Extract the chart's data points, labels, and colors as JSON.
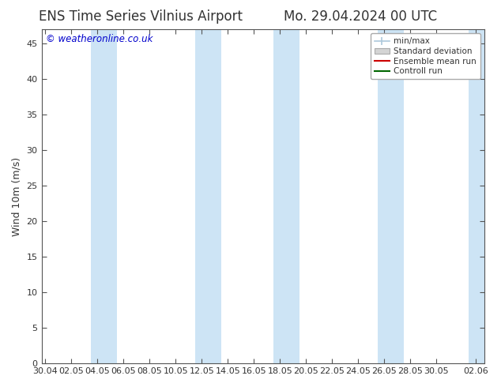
{
  "title_left": "ENS Time Series Vilnius Airport",
  "title_right": "Mo. 29.04.2024 00 UTC",
  "ylabel": "Wind 10m (m/s)",
  "watermark": "© weatheronline.co.uk",
  "watermark_color": "#0000cc",
  "bg_color": "#ffffff",
  "plot_bg_color": "#ffffff",
  "shaded_band_color": "#cde4f5",
  "x_ticks_labels": [
    "30.04",
    "02.05",
    "04.05",
    "06.05",
    "08.05",
    "10.05",
    "12.05",
    "14.05",
    "16.05",
    "18.05",
    "20.05",
    "22.05",
    "24.05",
    "26.05",
    "28.05",
    "30.05",
    "02.06"
  ],
  "x_ticks_positions": [
    0,
    2,
    4,
    6,
    8,
    10,
    12,
    14,
    16,
    18,
    20,
    22,
    24,
    26,
    28,
    30,
    33
  ],
  "ylim": [
    0,
    47
  ],
  "yticks": [
    0,
    5,
    10,
    15,
    20,
    25,
    30,
    35,
    40,
    45
  ],
  "xlim": [
    -0.3,
    33.7
  ],
  "shaded_pairs": [
    [
      3.5,
      5.5
    ],
    [
      11.5,
      13.5
    ],
    [
      17.5,
      19.5
    ],
    [
      25.5,
      27.5
    ],
    [
      32.5,
      34.0
    ]
  ],
  "legend_items": [
    {
      "label": "min/max",
      "color": "#adc8dc",
      "type": "errorbar"
    },
    {
      "label": "Standard deviation",
      "color": "#c8c8c8",
      "type": "box"
    },
    {
      "label": "Ensemble mean run",
      "color": "#cc0000",
      "type": "line"
    },
    {
      "label": "Controll run",
      "color": "#006600",
      "type": "line"
    }
  ],
  "tick_color": "#555555",
  "axis_color": "#555555",
  "font_color": "#333333",
  "title_fontsize": 12,
  "label_fontsize": 9,
  "tick_fontsize": 8,
  "watermark_fontsize": 8.5
}
